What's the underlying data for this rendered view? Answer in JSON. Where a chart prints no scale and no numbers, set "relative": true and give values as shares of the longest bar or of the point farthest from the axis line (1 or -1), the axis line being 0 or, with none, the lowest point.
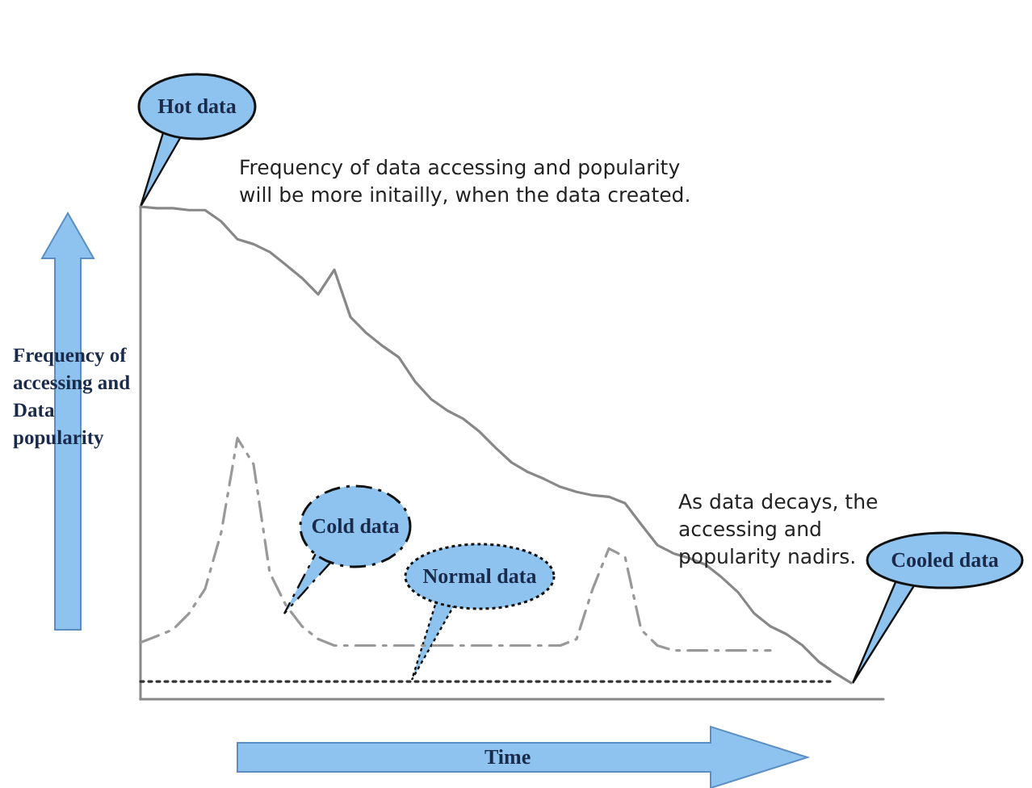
{
  "chart_data": {
    "type": "line",
    "relative": true,
    "xlabel": "Time",
    "ylabel": "Frequency of accessing and Data popularity",
    "categories": [
      null,
      null,
      null,
      null,
      null,
      null,
      null,
      null,
      null,
      null,
      null,
      null,
      null,
      null,
      null,
      null,
      null,
      null,
      null,
      null,
      null,
      null,
      null,
      null,
      null,
      null,
      null,
      null,
      null,
      null,
      null,
      null,
      null,
      null,
      null,
      null,
      null,
      null,
      null,
      null,
      null,
      null,
      null,
      null,
      null,
      null,
      null
    ],
    "series": [
      {
        "color": "#888888",
        "line_style": "solid",
        "values": [
          1.0,
          0.997,
          0.997,
          0.993,
          0.993,
          0.97,
          0.934,
          0.924,
          0.908,
          0.882,
          0.855,
          0.822,
          0.872,
          0.776,
          0.743,
          0.717,
          0.694,
          0.645,
          0.609,
          0.586,
          0.569,
          0.543,
          0.51,
          0.48,
          0.461,
          0.447,
          0.431,
          0.421,
          0.414,
          0.411,
          0.398,
          0.355,
          0.313,
          0.296,
          0.286,
          0.273,
          0.247,
          0.217,
          0.174,
          0.148,
          0.132,
          0.109,
          0.076,
          0.053,
          0.033,
          null,
          null
        ]
      },
      {
        "color": "#999999",
        "line_style": "dashed",
        "values": [
          0.115,
          0.128,
          0.141,
          0.174,
          0.224,
          0.339,
          0.53,
          0.477,
          0.257,
          0.191,
          0.148,
          0.122,
          0.109,
          0.109,
          0.109,
          0.109,
          0.109,
          0.109,
          0.109,
          0.109,
          0.109,
          0.109,
          0.109,
          0.109,
          0.109,
          0.109,
          0.109,
          0.122,
          0.224,
          0.306,
          0.289,
          0.141,
          0.109,
          0.099,
          0.099,
          0.099,
          0.099,
          0.099,
          0.099,
          0.099,
          null,
          null,
          null,
          null,
          null,
          null,
          null
        ]
      },
      {
        "color": "#333333",
        "line_style": "dotted",
        "values": [
          0.036,
          0.036,
          0.036,
          0.036,
          0.036,
          0.036,
          0.036,
          0.036,
          0.036,
          0.036,
          0.036,
          0.036,
          0.036,
          0.036,
          0.036,
          0.036,
          0.036,
          0.036,
          0.036,
          0.036,
          0.036,
          0.036,
          0.036,
          0.036,
          0.036,
          0.036,
          0.036,
          0.036,
          0.036,
          0.036,
          0.036,
          0.036,
          0.036,
          0.036,
          0.036,
          0.036,
          0.036,
          0.036,
          0.036,
          0.036,
          0.036,
          0.036,
          0.036,
          0.036,
          null,
          null,
          null
        ]
      }
    ],
    "annotations": [
      "Hot data",
      "Frequency of data accessing and popularity will be more initailly, when the data created.",
      "Cold data",
      "Normal data",
      "As data decays, the accessing and popularity nadirs.",
      "Cooled data"
    ],
    "marker": "none",
    "grid": false
  }
}
